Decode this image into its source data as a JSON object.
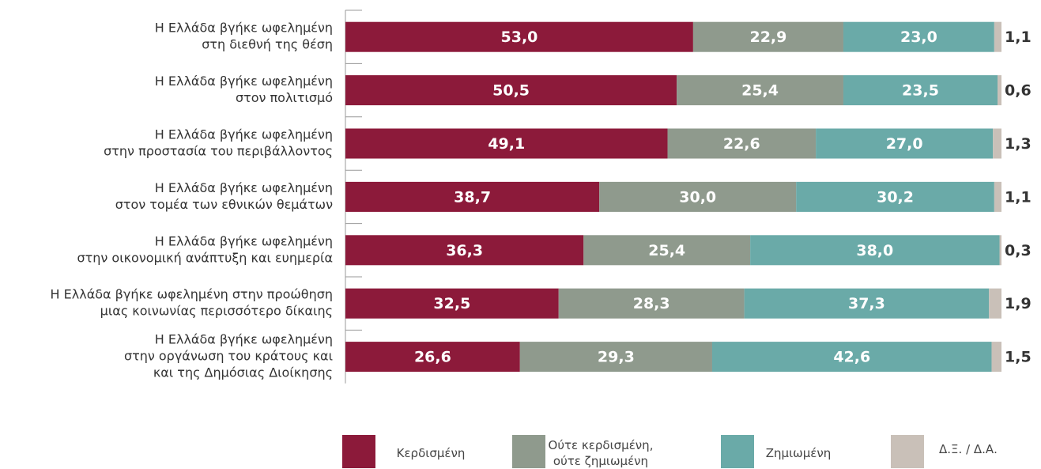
{
  "chart_data": {
    "type": "stacked-barh",
    "categories": [
      [
        "Η Ελλάδα βγήκε ωφελημένη",
        "στη διεθνή της θέση"
      ],
      [
        "Η Ελλάδα βγήκε ωφελημένη",
        "στον πολιτισμό"
      ],
      [
        "Η Ελλάδα βγήκε ωφελημένη",
        "στην προστασία του περιβάλλοντος"
      ],
      [
        "Η Ελλάδα βγήκε ωφελημένη",
        "στον τομέα των εθνικών θεμάτων"
      ],
      [
        "Η Ελλάδα βγήκε ωφελημένη",
        "στην οικονομική ανάπτυξη και ευημερία"
      ],
      [
        "Η Ελλάδα βγήκε ωφελημένη στην προώθηση",
        "μιας κοινωνίας περισσότερο δίκαιης"
      ],
      [
        "Η Ελλάδα βγήκε ωφελημένη",
        "στην οργάνωση του κράτους και",
        "και της Δημόσιας Διοίκησης"
      ]
    ],
    "xlim": [
      0,
      100
    ],
    "series": [
      {
        "name": "Κερδισμένη",
        "color": "#8c1a3a",
        "values": [
          53.0,
          50.5,
          49.1,
          38.7,
          36.3,
          32.5,
          26.6
        ],
        "value_labels": [
          "53,0",
          "50,5",
          "49,1",
          "38,7",
          "36,3",
          "32,5",
          "26,6"
        ]
      },
      {
        "name": "Ούτε κερδισμένη, ούτε ζημιωμένη",
        "color": "#8f9a8d",
        "values": [
          22.9,
          25.4,
          22.6,
          30.0,
          25.4,
          28.3,
          29.3
        ],
        "value_labels": [
          "22,9",
          "25,4",
          "22,6",
          "30,0",
          "25,4",
          "28,3",
          "29,3"
        ]
      },
      {
        "name": "Ζημιωμένη",
        "color": "#6aaaa8",
        "values": [
          23.0,
          23.5,
          27.0,
          30.2,
          38.0,
          37.3,
          42.6
        ],
        "value_labels": [
          "23,0",
          "23,5",
          "27,0",
          "30,2",
          "38,0",
          "37,3",
          "42,6"
        ]
      },
      {
        "name": "Δ.Ξ. / Δ.Α.",
        "color": "#c9c0b8",
        "values": [
          1.1,
          0.6,
          1.3,
          1.1,
          0.3,
          1.9,
          1.5
        ],
        "value_labels": [
          "1,1",
          "0,6",
          "1,3",
          "1,1",
          "0,3",
          "1,9",
          "1,5"
        ]
      }
    ]
  }
}
